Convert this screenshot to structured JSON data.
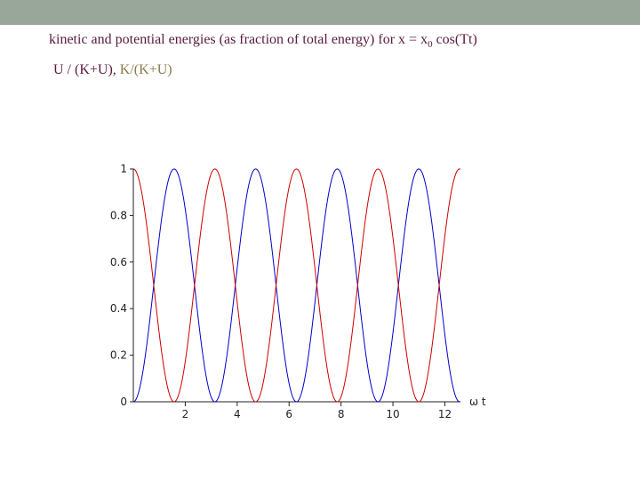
{
  "header": {
    "title_pre": "kinetic and potential energies (as fraction of total energy) for x = x",
    "title_sub": "0",
    "title_post": " cos(Tt)"
  },
  "legend": {
    "u_label": "U / (K+U), ",
    "k_label": "K/(K+U)",
    "u_color": "#5a1a3e",
    "k_color": "#8a7a4a"
  },
  "colors": {
    "top_bar": "#99a79b",
    "axis": "#222222"
  },
  "chart_data": {
    "type": "line",
    "title": "",
    "xlabel": "ω t",
    "ylabel": "",
    "xlim": [
      0,
      12.6
    ],
    "ylim": [
      0,
      1
    ],
    "xticks": [
      "2",
      "4",
      "6",
      "8",
      "10",
      "12"
    ],
    "yticks": [
      "0",
      "0.2",
      "0.4",
      "0.6",
      "0.8",
      "1"
    ],
    "grid": false,
    "series": [
      {
        "color": "#0000cc",
        "formula": "sin^2(ωt)"
      },
      {
        "color": "#cc0000",
        "formula": "cos^2(ωt)"
      }
    ]
  }
}
